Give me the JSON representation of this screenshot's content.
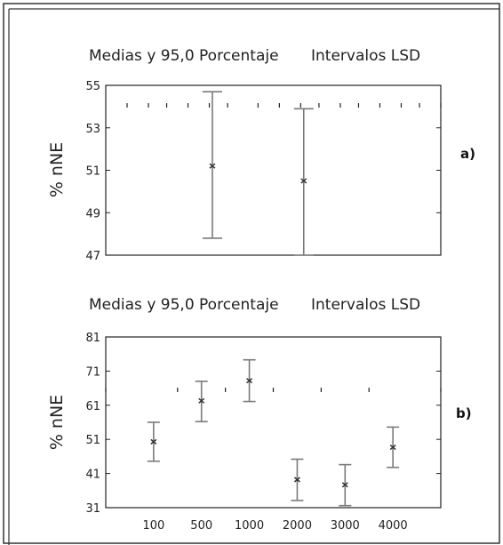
{
  "chart_data": [
    {
      "type": "errorbar",
      "panel_label": "a)",
      "title_left": "Medias y 95,0 Porcentaje",
      "title_right": "Intervalos LSD",
      "xlabel": "",
      "ylabel": "% nNE",
      "ylim": [
        47,
        55
      ],
      "yticks": [
        47,
        49,
        51,
        53,
        55
      ],
      "xlim": [
        0,
        11
      ],
      "categories": [],
      "series": [
        {
          "x": 3.5,
          "mean": 51.2,
          "lower": 47.8,
          "upper": 54.7
        },
        {
          "x": 6.5,
          "mean": 50.5,
          "lower": 47.0,
          "upper": 53.9
        }
      ],
      "xtick_marks": [
        0.7,
        1.4,
        2.0,
        2.7,
        3.4,
        4.0,
        5.0,
        5.7,
        6.4,
        7.0,
        7.7,
        8.3,
        9.0,
        9.7,
        10.3,
        11.0
      ],
      "grid": false,
      "colors": {
        "bar": "#7a7a7a",
        "point": "#333333",
        "axis": "#222222"
      }
    },
    {
      "type": "errorbar",
      "panel_label": "b)",
      "title_left": "Medias y 95,0 Porcentaje",
      "title_right": "Intervalos LSD",
      "xlabel": "",
      "ylabel": "% nNE",
      "ylim": [
        31,
        81
      ],
      "yticks": [
        31,
        41,
        51,
        61,
        71,
        81
      ],
      "xlim": [
        0,
        7
      ],
      "categories": [
        "100",
        "500",
        "1000",
        "2000",
        "3000",
        "4000"
      ],
      "series": [
        {
          "x": 1,
          "mean": 50.3,
          "lower": 44.6,
          "upper": 56.0
        },
        {
          "x": 2,
          "mean": 62.3,
          "lower": 56.2,
          "upper": 68.0
        },
        {
          "x": 3,
          "mean": 68.2,
          "lower": 62.1,
          "upper": 74.3
        },
        {
          "x": 4,
          "mean": 39.2,
          "lower": 33.1,
          "upper": 45.2
        },
        {
          "x": 5,
          "mean": 37.7,
          "lower": 31.6,
          "upper": 43.6
        },
        {
          "x": 6,
          "mean": 48.7,
          "lower": 42.8,
          "upper": 54.6
        }
      ],
      "xtick_marks": [
        0.0,
        1.5,
        2.5,
        3.5,
        4.5,
        5.5,
        7.0
      ],
      "grid": false,
      "colors": {
        "bar": "#7a7a7a",
        "point": "#333333",
        "axis": "#222222"
      }
    }
  ]
}
